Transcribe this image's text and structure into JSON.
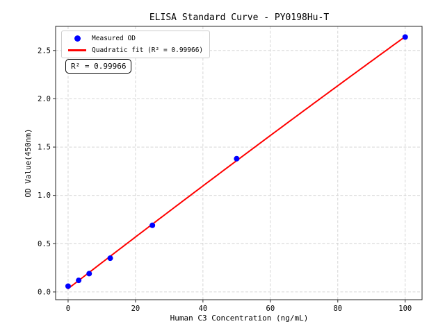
{
  "chart_data": {
    "type": "scatter",
    "title": "ELISA Standard Curve - PY0198Hu-T",
    "xlabel": "Human C3 Concentration (ng/mL)",
    "ylabel": "OD Value(450nm)",
    "xlim": [
      -3.7,
      105
    ],
    "ylim": [
      -0.08,
      2.75
    ],
    "xticks": [
      0,
      20,
      40,
      60,
      80,
      100
    ],
    "xtick_labels": [
      "0",
      "20",
      "40",
      "60",
      "80",
      "100"
    ],
    "yticks": [
      0,
      0.5,
      1,
      1.5,
      2,
      2.5
    ],
    "ytick_labels": [
      "0.0",
      "0.5",
      "1.0",
      "1.5",
      "2.0",
      "2.5"
    ],
    "grid": true,
    "grid_style": "dashed",
    "legend_position": "upper left",
    "series": [
      {
        "name": "Measured OD",
        "type": "scatter",
        "color": "#0000ff",
        "x": [
          0,
          3.125,
          6.25,
          12.5,
          25,
          50,
          100
        ],
        "y": [
          0.06,
          0.12,
          0.19,
          0.35,
          0.69,
          1.38,
          2.64
        ]
      },
      {
        "name": "Quadratic fit (R² = 0.99966)",
        "type": "quadratic_fit",
        "color": "#ff0000",
        "fit_range": [
          0,
          100
        ]
      }
    ],
    "annotation": "R² = 0.99966",
    "r_squared": "0.99966"
  },
  "colors": {
    "scatter_marker": "#0000ff",
    "fit_line": "#ff0000",
    "spine": "#262626",
    "gridline": "#d0d0d0",
    "background": "#ffffff"
  }
}
